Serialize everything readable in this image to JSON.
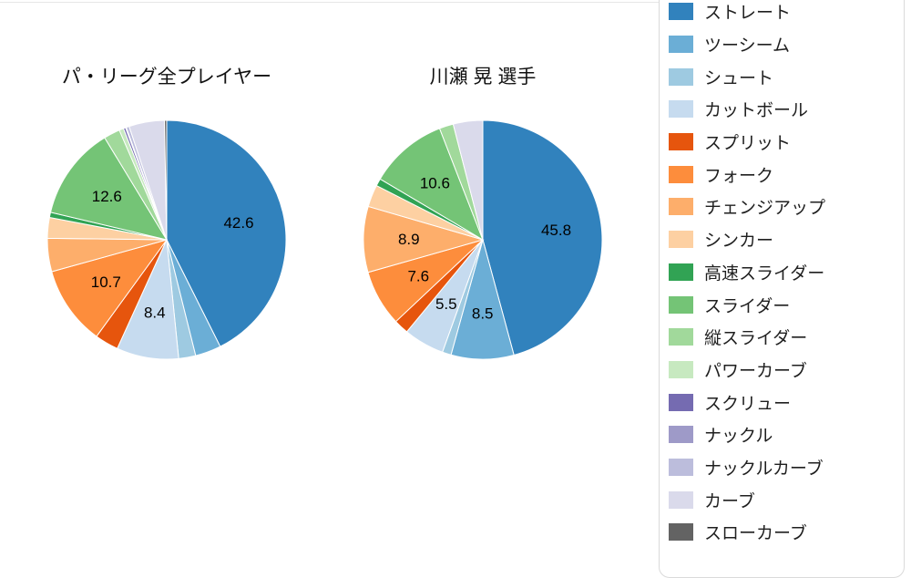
{
  "chart_data": [
    {
      "type": "pie",
      "title": "パ・リーグ全プレイヤー",
      "categories": [
        "ストレート",
        "ツーシーム",
        "シュート",
        "カットボール",
        "スプリット",
        "フォーク",
        "チェンジアップ",
        "シンカー",
        "高速スライダー",
        "スライダー",
        "縦スライダー",
        "パワーカーブ",
        "スクリュー",
        "ナックル",
        "ナックルカーブ",
        "カーブ",
        "スローカーブ"
      ],
      "values": [
        42.6,
        3.5,
        2.3,
        8.4,
        3.2,
        10.7,
        4.5,
        2.8,
        0.7,
        12.6,
        2.2,
        0.6,
        0.3,
        0.1,
        0.4,
        4.8,
        0.3
      ],
      "colors": [
        "#3182bd",
        "#6baed6",
        "#9ecae1",
        "#c6dbef",
        "#e6550d",
        "#fd8d3c",
        "#fdae6b",
        "#fdd0a2",
        "#31a354",
        "#74c476",
        "#a1d99b",
        "#c7e9c0",
        "#756bb1",
        "#9e9ac8",
        "#bcbddc",
        "#dadaeb",
        "#636363"
      ],
      "visible_labels": [
        42.6,
        8.4,
        10.7,
        12.6
      ],
      "label_threshold": 5,
      "start_angle": 90,
      "direction": "clockwise",
      "legend_position": "right"
    },
    {
      "type": "pie",
      "title": "川瀬 晃 選手",
      "categories": [
        "ストレート",
        "ツーシーム",
        "シュート",
        "カットボール",
        "スプリット",
        "フォーク",
        "チェンジアップ",
        "シンカー",
        "高速スライダー",
        "スライダー",
        "縦スライダー",
        "パワーカーブ",
        "スクリュー",
        "ナックル",
        "ナックルカーブ",
        "カーブ",
        "スローカーブ"
      ],
      "values": [
        45.8,
        8.5,
        1.2,
        5.5,
        2.0,
        7.6,
        8.9,
        3.0,
        1.0,
        10.6,
        1.9,
        0,
        0,
        0,
        0,
        4.0,
        0
      ],
      "colors": [
        "#3182bd",
        "#6baed6",
        "#9ecae1",
        "#c6dbef",
        "#e6550d",
        "#fd8d3c",
        "#fdae6b",
        "#fdd0a2",
        "#31a354",
        "#74c476",
        "#a1d99b",
        "#c7e9c0",
        "#756bb1",
        "#9e9ac8",
        "#bcbddc",
        "#dadaeb",
        "#636363"
      ],
      "visible_labels": [
        45.8,
        8.5,
        5.5,
        7.6,
        8.9,
        10.6
      ],
      "label_threshold": 5,
      "start_angle": 90,
      "direction": "clockwise",
      "legend_position": "right"
    }
  ],
  "legend": {
    "position": "right",
    "items": [
      {
        "label": "ストレート",
        "color": "#3182bd"
      },
      {
        "label": "ツーシーム",
        "color": "#6baed6"
      },
      {
        "label": "シュート",
        "color": "#9ecae1"
      },
      {
        "label": "カットボール",
        "color": "#c6dbef"
      },
      {
        "label": "スプリット",
        "color": "#e6550d"
      },
      {
        "label": "フォーク",
        "color": "#fd8d3c"
      },
      {
        "label": "チェンジアップ",
        "color": "#fdae6b"
      },
      {
        "label": "シンカー",
        "color": "#fdd0a2"
      },
      {
        "label": "高速スライダー",
        "color": "#31a354"
      },
      {
        "label": "スライダー",
        "color": "#74c476"
      },
      {
        "label": "縦スライダー",
        "color": "#a1d99b"
      },
      {
        "label": "パワーカーブ",
        "color": "#c7e9c0"
      },
      {
        "label": "スクリュー",
        "color": "#756bb1"
      },
      {
        "label": "ナックル",
        "color": "#9e9ac8"
      },
      {
        "label": "ナックルカーブ",
        "color": "#bcbddc"
      },
      {
        "label": "カーブ",
        "color": "#dadaeb"
      },
      {
        "label": "スローカーブ",
        "color": "#636363"
      }
    ]
  }
}
